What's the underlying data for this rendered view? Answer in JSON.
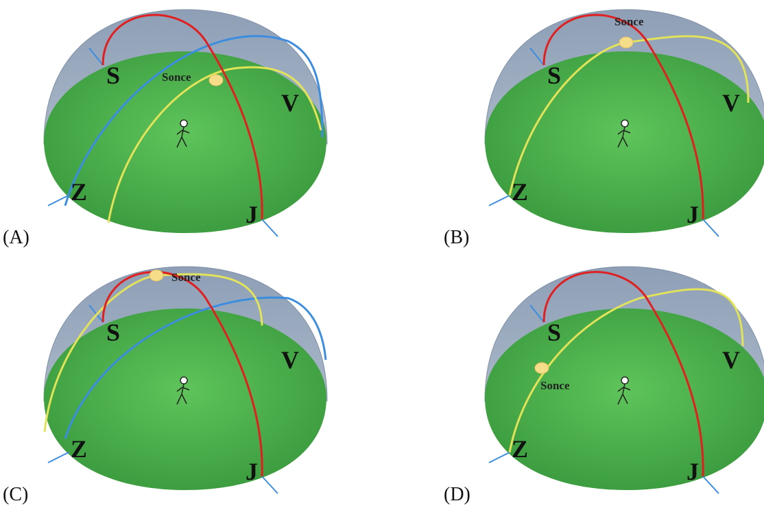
{
  "panels": [
    {
      "label": "(A)",
      "sun": "Sonce",
      "north": "S",
      "east": "V",
      "west": "Z",
      "south": "J"
    },
    {
      "label": "(B)",
      "sun": "Sonce",
      "north": "S",
      "east": "V",
      "west": "Z",
      "south": "J"
    },
    {
      "label": "(C)",
      "sun": "Sonce",
      "north": "S",
      "east": "V",
      "west": "Z",
      "south": "J"
    },
    {
      "label": "(D)",
      "sun": "Sonce",
      "north": "S",
      "east": "V",
      "west": "Z",
      "south": "J"
    }
  ]
}
